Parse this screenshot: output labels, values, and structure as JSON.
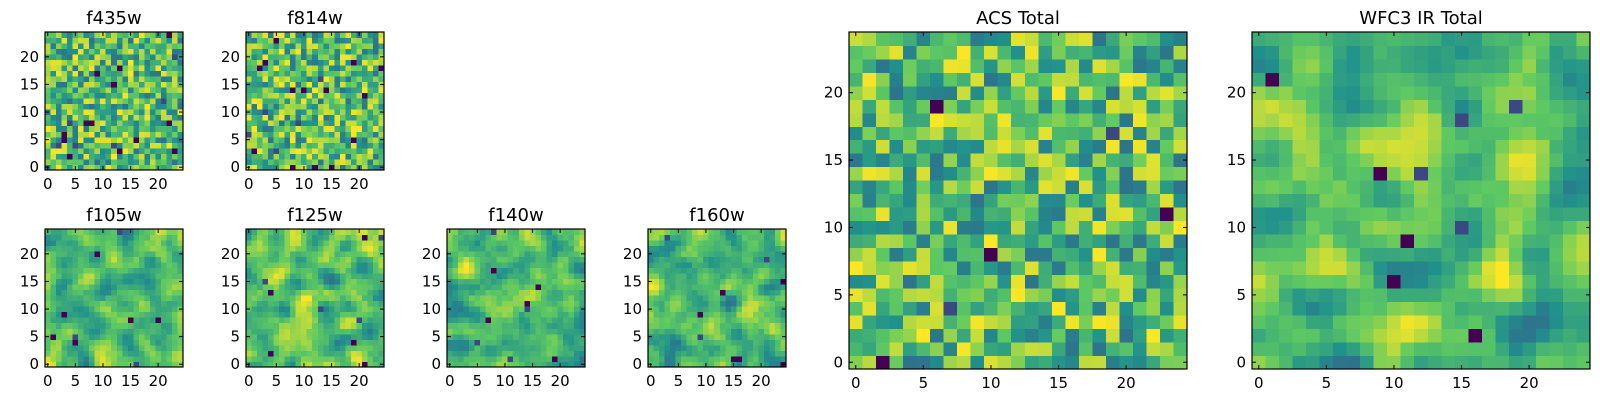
{
  "figure": {
    "colormap": "viridis",
    "colormap_stops": [
      "#440154",
      "#3b528b",
      "#21918c",
      "#5ec962",
      "#fde725"
    ]
  },
  "chart_data": [
    {
      "type": "heatmap",
      "title": "f435w",
      "grid_size": 25,
      "seed": 11,
      "xticks": [
        0,
        5,
        10,
        15,
        20
      ],
      "yticks": [
        0,
        5,
        10,
        15,
        20
      ],
      "xlim": [
        -0.5,
        24.5
      ],
      "ylim": [
        -0.5,
        24.5
      ],
      "value_range": [
        0,
        1
      ],
      "texture": "noisy",
      "dark_pixel_fraction": 0.03
    },
    {
      "type": "heatmap",
      "title": "f814w",
      "grid_size": 25,
      "seed": 23,
      "xticks": [
        0,
        5,
        10,
        15,
        20
      ],
      "yticks": [
        0,
        5,
        10,
        15,
        20
      ],
      "xlim": [
        -0.5,
        24.5
      ],
      "ylim": [
        -0.5,
        24.5
      ],
      "value_range": [
        0,
        1
      ],
      "texture": "noisy",
      "dark_pixel_fraction": 0.03
    },
    {
      "type": "heatmap",
      "title": "f105w",
      "grid_size": 25,
      "seed": 37,
      "xticks": [
        0,
        5,
        10,
        15,
        20
      ],
      "yticks": [
        0,
        5,
        10,
        15,
        20
      ],
      "xlim": [
        -0.5,
        24.5
      ],
      "ylim": [
        -0.5,
        24.5
      ],
      "value_range": [
        0,
        1
      ],
      "texture": "smooth",
      "dark_pixel_fraction": 0.015
    },
    {
      "type": "heatmap",
      "title": "f125w",
      "grid_size": 25,
      "seed": 41,
      "xticks": [
        0,
        5,
        10,
        15,
        20
      ],
      "yticks": [
        0,
        5,
        10,
        15,
        20
      ],
      "xlim": [
        -0.5,
        24.5
      ],
      "ylim": [
        -0.5,
        24.5
      ],
      "value_range": [
        0,
        1
      ],
      "texture": "smooth",
      "dark_pixel_fraction": 0.015
    },
    {
      "type": "heatmap",
      "title": "f140w",
      "grid_size": 25,
      "seed": 53,
      "xticks": [
        0,
        5,
        10,
        15,
        20
      ],
      "yticks": [
        0,
        5,
        10,
        15,
        20
      ],
      "xlim": [
        -0.5,
        24.5
      ],
      "ylim": [
        -0.5,
        24.5
      ],
      "value_range": [
        0,
        1
      ],
      "texture": "smooth",
      "dark_pixel_fraction": 0.015
    },
    {
      "type": "heatmap",
      "title": "f160w",
      "grid_size": 25,
      "seed": 67,
      "xticks": [
        0,
        5,
        10,
        15,
        20
      ],
      "yticks": [
        0,
        5,
        10,
        15,
        20
      ],
      "xlim": [
        -0.5,
        24.5
      ],
      "ylim": [
        -0.5,
        24.5
      ],
      "value_range": [
        0,
        1
      ],
      "texture": "smooth",
      "dark_pixel_fraction": 0.015
    },
    {
      "type": "heatmap",
      "title": "ACS Total",
      "grid_size": 25,
      "seed": 79,
      "xticks": [
        0,
        5,
        10,
        15,
        20
      ],
      "yticks": [
        0,
        5,
        10,
        15,
        20
      ],
      "xlim": [
        -0.5,
        24.5
      ],
      "ylim": [
        -0.5,
        24.5
      ],
      "value_range": [
        0,
        1
      ],
      "texture": "noisy",
      "dark_pixel_fraction": 0.01
    },
    {
      "type": "heatmap",
      "title": "WFC3 IR Total",
      "grid_size": 25,
      "seed": 97,
      "xticks": [
        0,
        5,
        10,
        15,
        20
      ],
      "yticks": [
        0,
        5,
        10,
        15,
        20
      ],
      "xlim": [
        -0.5,
        24.5
      ],
      "ylim": [
        -0.5,
        24.5
      ],
      "value_range": [
        0,
        1
      ],
      "texture": "smooth",
      "dark_pixel_fraction": 0.015
    }
  ]
}
